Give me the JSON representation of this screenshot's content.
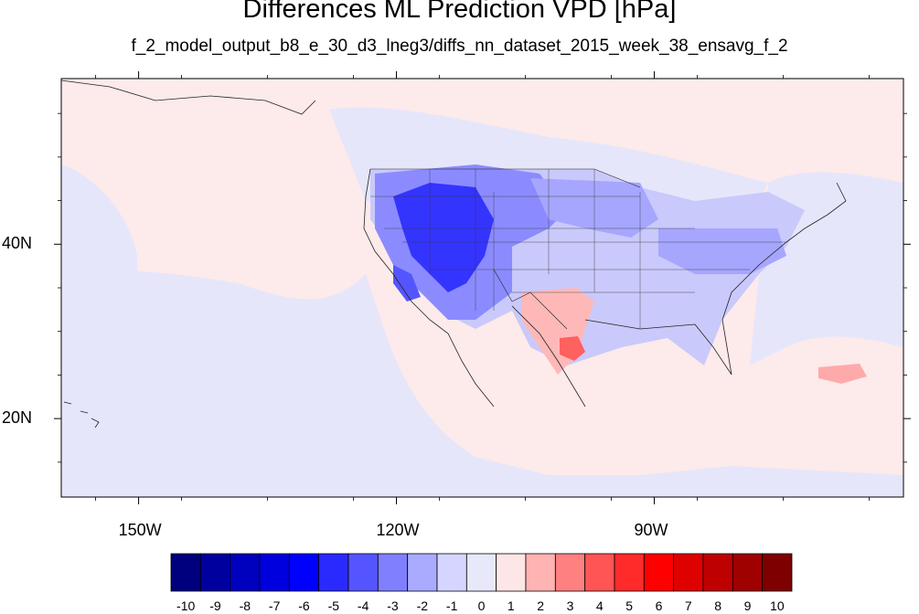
{
  "title": "Differences ML Prediction VPD [hPa]",
  "subtitle": "f_2_model_output_b8_e_30_d3_lneg3/diffs_nn_dataset_2015_week_38_ensavg_f_2",
  "map": {
    "lon_range": [
      -159,
      -61
    ],
    "lat_range": [
      11,
      59
    ],
    "background_color": "#fdeaea",
    "x_ticks": [
      {
        "lon": -150,
        "label": "150W"
      },
      {
        "lon": -120,
        "label": "120W"
      },
      {
        "lon": -90,
        "label": "90W"
      }
    ],
    "y_ticks": [
      {
        "lat": 20,
        "label": "20N"
      },
      {
        "lat": 40,
        "label": "40N"
      }
    ]
  },
  "colorbar": {
    "labels": [
      "-10",
      "-9",
      "-8",
      "-7",
      "-6",
      "-5",
      "-4",
      "-3",
      "-2",
      "-1",
      "0",
      "1",
      "2",
      "3",
      "4",
      "5",
      "6",
      "7",
      "8",
      "9",
      "10"
    ],
    "colors": [
      "#00007f",
      "#00009f",
      "#0000bf",
      "#0000df",
      "#0000ff",
      "#2a2aff",
      "#5555ff",
      "#8080ff",
      "#aaaaff",
      "#d5d5ff",
      "#e8e8fb",
      "#fde6e6",
      "#ffb3b3",
      "#ff8080",
      "#ff5555",
      "#ff2a2a",
      "#ff0000",
      "#df0000",
      "#bf0000",
      "#9f0000",
      "#7f0000"
    ]
  }
}
